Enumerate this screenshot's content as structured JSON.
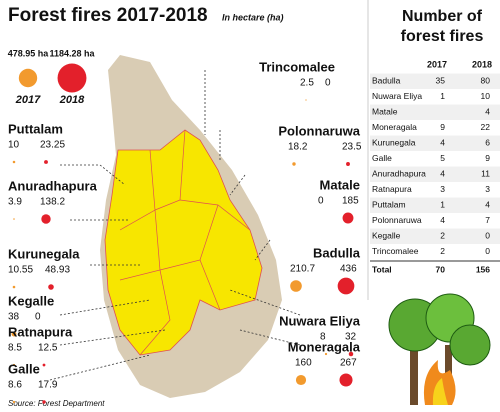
{
  "header": {
    "title": "Forest fires 2017-2018",
    "subtitle": "In hectare (ha)"
  },
  "totals": {
    "years": [
      "2017",
      "2018"
    ],
    "values": [
      {
        "value": 478.95,
        "label": "478.95 ha"
      },
      {
        "value": 1184.28,
        "label": "1184.28 ha"
      }
    ],
    "colors": [
      "#f29a2e",
      "#e3202b"
    ]
  },
  "districts": [
    {
      "name": "Trincomalee",
      "values": [
        2.5,
        0
      ]
    },
    {
      "name": "Polonnaruwa",
      "values": [
        18.2,
        23.5
      ]
    },
    {
      "name": "Matale",
      "values": [
        0,
        185
      ]
    },
    {
      "name": "Badulla",
      "values": [
        210.7,
        436
      ]
    },
    {
      "name": "Nuwara Eliya",
      "values": [
        8,
        32
      ]
    },
    {
      "name": "Moneragala",
      "values": [
        160,
        267
      ]
    },
    {
      "name": "Puttalam",
      "values": [
        10,
        23.25
      ]
    },
    {
      "name": "Anuradhapura",
      "values": [
        3.9,
        138.2
      ]
    },
    {
      "name": "Kurunegala",
      "values": [
        10.55,
        48.93
      ]
    },
    {
      "name": "Kegalle",
      "values": [
        38,
        0
      ]
    },
    {
      "name": "Ratnapura",
      "values": [
        8.5,
        12.5
      ]
    },
    {
      "name": "Galle",
      "values": [
        8.6,
        17.9
      ]
    }
  ],
  "table": {
    "title": [
      "Number of",
      "forest fires"
    ],
    "columns": [
      "2017",
      "2018"
    ],
    "rows": [
      [
        "Badulla",
        35,
        80
      ],
      [
        "Nuwara Eliya",
        1,
        10
      ],
      [
        "Matale",
        null,
        4
      ],
      [
        "Moneragala",
        9,
        22
      ],
      [
        "Kurunegala",
        4,
        6
      ],
      [
        "Galle",
        5,
        9
      ],
      [
        "Anuradhapura",
        4,
        11
      ],
      [
        "Ratnapura",
        3,
        3
      ],
      [
        "Puttalam",
        1,
        4
      ],
      [
        "Polonnaruwa",
        4,
        7
      ],
      [
        "Kegalle",
        2,
        0
      ],
      [
        "Trincomalee",
        2,
        0
      ]
    ],
    "total": [
      "Total",
      70,
      156
    ]
  },
  "source": "Source: Forest Department"
}
